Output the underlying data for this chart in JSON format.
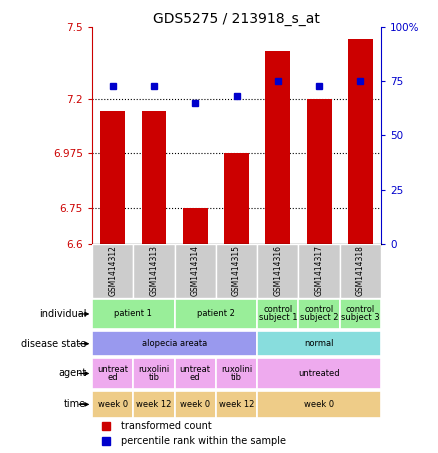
{
  "title": "GDS5275 / 213918_s_at",
  "samples": [
    "GSM1414312",
    "GSM1414313",
    "GSM1414314",
    "GSM1414315",
    "GSM1414316",
    "GSM1414317",
    "GSM1414318"
  ],
  "bar_values": [
    7.15,
    7.15,
    6.75,
    6.975,
    7.4,
    7.2,
    7.45
  ],
  "dot_values": [
    73,
    73,
    65,
    68,
    75,
    73,
    75
  ],
  "bar_color": "#cc0000",
  "dot_color": "#0000cc",
  "ymin": 6.6,
  "ymax": 7.5,
  "y2min": 0,
  "y2max": 100,
  "yticks": [
    6.6,
    6.75,
    6.975,
    7.2,
    7.5
  ],
  "ytick_labels": [
    "6.6",
    "6.75",
    "6.975",
    "7.2",
    "7.5"
  ],
  "y2ticks": [
    0,
    25,
    50,
    75,
    100
  ],
  "y2tick_labels": [
    "0",
    "25",
    "50",
    "75",
    "100%"
  ],
  "hlines": [
    7.2,
    6.975,
    6.75
  ],
  "bar_width": 0.6,
  "ind_groups": [
    {
      "label": "patient 1",
      "start": 0,
      "end": 2,
      "color": "#99ee99"
    },
    {
      "label": "patient 2",
      "start": 2,
      "end": 4,
      "color": "#99ee99"
    },
    {
      "label": "control\nsubject 1",
      "start": 4,
      "end": 5,
      "color": "#99ee99"
    },
    {
      "label": "control\nsubject 2",
      "start": 5,
      "end": 6,
      "color": "#99ee99"
    },
    {
      "label": "control\nsubject 3",
      "start": 6,
      "end": 7,
      "color": "#99ee99"
    }
  ],
  "dis_groups": [
    {
      "label": "alopecia areata",
      "start": 0,
      "end": 4,
      "color": "#9999ee"
    },
    {
      "label": "normal",
      "start": 4,
      "end": 7,
      "color": "#88dddd"
    }
  ],
  "agent_groups": [
    {
      "label": "untreat\ned",
      "start": 0,
      "end": 1,
      "color": "#eeaaee"
    },
    {
      "label": "ruxolini\ntib",
      "start": 1,
      "end": 2,
      "color": "#eeaaee"
    },
    {
      "label": "untreat\ned",
      "start": 2,
      "end": 3,
      "color": "#eeaaee"
    },
    {
      "label": "ruxolini\ntib",
      "start": 3,
      "end": 4,
      "color": "#eeaaee"
    },
    {
      "label": "untreated",
      "start": 4,
      "end": 7,
      "color": "#eeaaee"
    }
  ],
  "time_groups": [
    {
      "label": "week 0",
      "start": 0,
      "end": 1,
      "color": "#eecc88"
    },
    {
      "label": "week 12",
      "start": 1,
      "end": 2,
      "color": "#eecc88"
    },
    {
      "label": "week 0",
      "start": 2,
      "end": 3,
      "color": "#eecc88"
    },
    {
      "label": "week 12",
      "start": 3,
      "end": 4,
      "color": "#eecc88"
    },
    {
      "label": "week 0",
      "start": 4,
      "end": 7,
      "color": "#eecc88"
    }
  ],
  "row_labels": [
    "individual",
    "disease state",
    "agent",
    "time"
  ],
  "legend_bar_label": "transformed count",
  "legend_dot_label": "percentile rank within the sample",
  "gsm_bg": "#cccccc",
  "bg_color": "#ffffff",
  "axis_color_left": "#cc0000",
  "axis_color_right": "#0000cc"
}
